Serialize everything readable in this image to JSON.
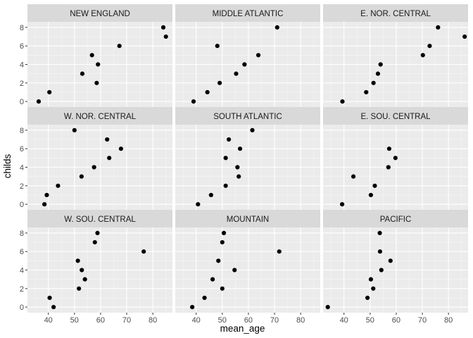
{
  "chart_data": {
    "type": "scatter",
    "title": "",
    "xlabel": "mean_age",
    "ylabel": "childs",
    "xlim": [
      32,
      87.5
    ],
    "ylim": [
      -0.6,
      8.6
    ],
    "xticks": [
      40,
      50,
      60,
      70,
      80
    ],
    "yticks": [
      0,
      2,
      4,
      6,
      8
    ],
    "grid": true,
    "legend": "none",
    "point_color": "#000000",
    "panel_background": "#ebebeb",
    "strip_background": "#d9d9d9",
    "panels": [
      {
        "label": "NEW ENGLAND",
        "points": [
          [
            36.3,
            0
          ],
          [
            40.4,
            1
          ],
          [
            53.0,
            3
          ],
          [
            58.5,
            2
          ],
          [
            56.7,
            5
          ],
          [
            59.0,
            4
          ],
          [
            67.2,
            6
          ],
          [
            84.0,
            8
          ],
          [
            85.0,
            7
          ]
        ]
      },
      {
        "label": "MIDDLE ATLANTIC",
        "points": [
          [
            39.0,
            0
          ],
          [
            44.3,
            1
          ],
          [
            49.0,
            2
          ],
          [
            55.3,
            3
          ],
          [
            58.5,
            4
          ],
          [
            63.8,
            5
          ],
          [
            48.1,
            6
          ],
          [
            71.0,
            8
          ]
        ]
      },
      {
        "label": "E. NOR. CENTRAL",
        "points": [
          [
            39.4,
            0
          ],
          [
            48.5,
            1
          ],
          [
            51.3,
            2
          ],
          [
            53.0,
            3
          ],
          [
            54.0,
            4
          ],
          [
            70.2,
            5
          ],
          [
            72.8,
            6
          ],
          [
            76.0,
            8
          ],
          [
            86.2,
            7
          ]
        ]
      },
      {
        "label": "W. NOR. CENTRAL",
        "points": [
          [
            38.5,
            0
          ],
          [
            39.4,
            1
          ],
          [
            43.7,
            2
          ],
          [
            52.7,
            3
          ],
          [
            57.5,
            4
          ],
          [
            63.3,
            5
          ],
          [
            67.8,
            6
          ],
          [
            62.5,
            7
          ],
          [
            50.0,
            8
          ]
        ]
      },
      {
        "label": "SOUTH ATLANTIC",
        "points": [
          [
            40.7,
            0
          ],
          [
            45.7,
            1
          ],
          [
            51.3,
            2
          ],
          [
            56.3,
            3
          ],
          [
            55.8,
            4
          ],
          [
            51.3,
            5
          ],
          [
            56.8,
            6
          ],
          [
            52.5,
            7
          ],
          [
            61.5,
            8
          ]
        ]
      },
      {
        "label": "E. SOU. CENTRAL",
        "points": [
          [
            39.3,
            0
          ],
          [
            50.3,
            1
          ],
          [
            51.8,
            2
          ],
          [
            43.6,
            3
          ],
          [
            57.0,
            4
          ],
          [
            59.7,
            5
          ],
          [
            57.3,
            6
          ]
        ]
      },
      {
        "label": "W. SOU. CENTRAL",
        "points": [
          [
            42.0,
            0
          ],
          [
            40.5,
            1
          ],
          [
            51.7,
            2
          ],
          [
            54.0,
            3
          ],
          [
            52.8,
            4
          ],
          [
            51.3,
            5
          ],
          [
            76.5,
            6
          ],
          [
            57.8,
            7
          ],
          [
            58.8,
            8
          ]
        ]
      },
      {
        "label": "MOUNTAIN",
        "points": [
          [
            38.5,
            0
          ],
          [
            43.2,
            1
          ],
          [
            50.0,
            2
          ],
          [
            46.3,
            3
          ],
          [
            54.7,
            4
          ],
          [
            48.5,
            5
          ],
          [
            71.8,
            6
          ],
          [
            50.0,
            7
          ],
          [
            50.6,
            8
          ]
        ]
      },
      {
        "label": "PACIFIC",
        "points": [
          [
            33.8,
            0
          ],
          [
            49.0,
            1
          ],
          [
            51.2,
            2
          ],
          [
            50.3,
            3
          ],
          [
            54.3,
            4
          ],
          [
            57.8,
            5
          ],
          [
            53.8,
            6
          ],
          [
            53.7,
            8
          ]
        ]
      }
    ]
  }
}
